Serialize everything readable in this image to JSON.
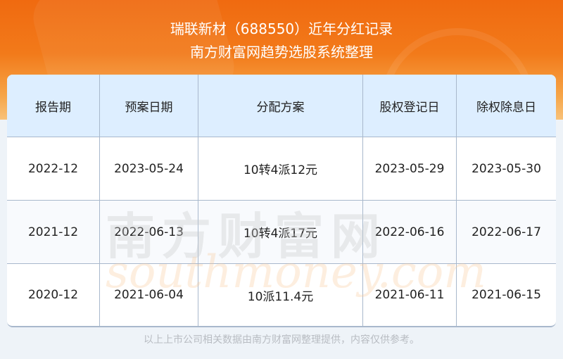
{
  "header": {
    "title": "瑞联新材（688550）近年分红记录",
    "subtitle": "南方财富网趋势选股系统整理"
  },
  "table": {
    "columns": [
      "报告期",
      "预案日期",
      "分配方案",
      "股权登记日",
      "除权除息日"
    ],
    "rows": [
      [
        "2022-12",
        "2023-05-24",
        "10转4派12元",
        "2023-05-29",
        "2023-05-30"
      ],
      [
        "2021-12",
        "2022-06-13",
        "10转4派17元",
        "2022-06-16",
        "2022-06-17"
      ],
      [
        "2020-12",
        "2021-06-04",
        "10派11.4元",
        "2021-06-11",
        "2021-06-15"
      ]
    ]
  },
  "watermark": {
    "cn": "南方财富网",
    "en": "southmoney.com"
  },
  "footer": "以上上市公司相关数据由南方财富网整理提供，内容仅供参考。",
  "colors": {
    "banner": "#f06a10",
    "header_bg": "#ddeeff",
    "border": "#a8b8cc"
  }
}
